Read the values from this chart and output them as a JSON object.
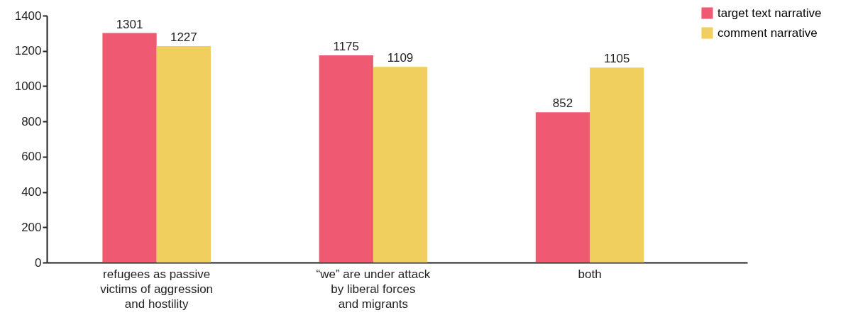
{
  "chart_data": {
    "type": "bar",
    "categories": [
      "refugees as passive\nvictims of aggression\nand hostility",
      "“we” are under attack\nby liberal forces\nand migrants",
      "both"
    ],
    "series": [
      {
        "name": "target text narrative",
        "color": "#ef5a72",
        "values": [
          1301,
          1175,
          852
        ]
      },
      {
        "name": "comment narrative",
        "color": "#f0cf5e",
        "values": [
          1227,
          1109,
          1105
        ]
      }
    ],
    "ylim": [
      0,
      1400
    ],
    "yticks": [
      0,
      200,
      400,
      600,
      800,
      1000,
      1200,
      1400
    ],
    "data_labels": true,
    "legend": "top right"
  }
}
